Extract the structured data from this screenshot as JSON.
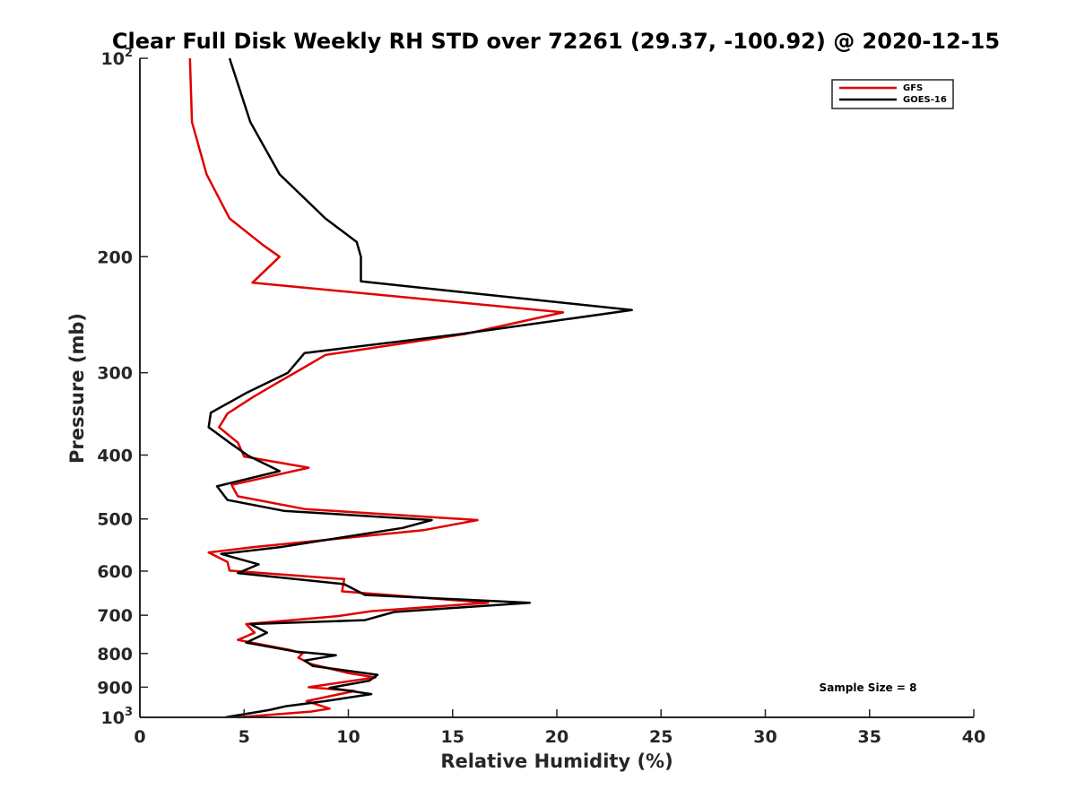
{
  "chart_data": {
    "type": "line",
    "title": "Clear Full Disk Weekly RH STD over 72261 (29.37, -100.92) @ 2020-12-15",
    "xlabel": "Relative Humidity (%)",
    "ylabel": "Pressure (mb)",
    "xlim": [
      0,
      40
    ],
    "ylim": [
      100,
      1000
    ],
    "yscale": "log",
    "y_reversed": true,
    "x_ticks": [
      "0",
      "5",
      "10",
      "15",
      "20",
      "25",
      "30",
      "35",
      "40"
    ],
    "y_ticks": [
      {
        "value": 100,
        "base": "10",
        "exp": "2"
      },
      {
        "value": 200,
        "label": "200"
      },
      {
        "value": 300,
        "label": "300"
      },
      {
        "value": 400,
        "label": "400"
      },
      {
        "value": 500,
        "label": "500"
      },
      {
        "value": 600,
        "label": "600"
      },
      {
        "value": 700,
        "label": "700"
      },
      {
        "value": 800,
        "label": "800"
      },
      {
        "value": 900,
        "label": "900"
      },
      {
        "value": 1000,
        "base": "10",
        "exp": "3"
      }
    ],
    "grid": false,
    "legend_position": "top-right",
    "annotation": "Sample Size = 8",
    "series": [
      {
        "name": "GFS",
        "color": "#e00000",
        "points": [
          [
            2.4,
            100
          ],
          [
            2.5,
            125
          ],
          [
            3.2,
            150
          ],
          [
            4.3,
            175
          ],
          [
            5.9,
            192
          ],
          [
            6.7,
            200
          ],
          [
            5.4,
            219
          ],
          [
            20.3,
            243
          ],
          [
            15.6,
            262
          ],
          [
            8.9,
            282
          ],
          [
            7.6,
            298
          ],
          [
            6.5,
            312
          ],
          [
            5.4,
            327
          ],
          [
            4.2,
            346
          ],
          [
            3.8,
            363
          ],
          [
            4.7,
            383
          ],
          [
            5.0,
            402
          ],
          [
            8.1,
            418
          ],
          [
            4.4,
            444
          ],
          [
            4.7,
            462
          ],
          [
            7.9,
            483
          ],
          [
            16.2,
            502
          ],
          [
            13.6,
            520
          ],
          [
            5.4,
            552
          ],
          [
            3.3,
            562
          ],
          [
            4.2,
            581
          ],
          [
            4.3,
            599
          ],
          [
            9.8,
            617
          ],
          [
            9.7,
            644
          ],
          [
            16.7,
            670
          ],
          [
            11.1,
            690
          ],
          [
            9.5,
            702
          ],
          [
            5.1,
            722
          ],
          [
            5.5,
            744
          ],
          [
            4.7,
            763
          ],
          [
            7.2,
            790
          ],
          [
            7.8,
            800
          ],
          [
            7.6,
            812
          ],
          [
            8.2,
            830
          ],
          [
            10.0,
            857
          ],
          [
            11.3,
            870
          ],
          [
            8.1,
            900
          ],
          [
            10.3,
            912
          ],
          [
            8.0,
            945
          ],
          [
            9.1,
            970
          ],
          [
            8.2,
            980
          ],
          [
            4.7,
            1000
          ]
        ]
      },
      {
        "name": "GOES-16",
        "color": "#000000",
        "points": [
          [
            4.3,
            100
          ],
          [
            5.3,
            125
          ],
          [
            6.7,
            150
          ],
          [
            8.9,
            175
          ],
          [
            10.4,
            190
          ],
          [
            10.6,
            200
          ],
          [
            10.6,
            218
          ],
          [
            23.6,
            241
          ],
          [
            15.4,
            262
          ],
          [
            7.9,
            280
          ],
          [
            7.1,
            300
          ],
          [
            5.1,
            322
          ],
          [
            3.4,
            345
          ],
          [
            3.3,
            363
          ],
          [
            4.3,
            383
          ],
          [
            5.2,
            401
          ],
          [
            6.7,
            423
          ],
          [
            3.7,
            446
          ],
          [
            4.2,
            468
          ],
          [
            6.9,
            486
          ],
          [
            14.0,
            502
          ],
          [
            12.6,
            516
          ],
          [
            6.7,
            552
          ],
          [
            3.9,
            565
          ],
          [
            5.7,
            586
          ],
          [
            4.7,
            604
          ],
          [
            9.8,
            628
          ],
          [
            10.8,
            652
          ],
          [
            18.7,
            670
          ],
          [
            12.2,
            692
          ],
          [
            10.8,
            712
          ],
          [
            5.3,
            722
          ],
          [
            6.1,
            744
          ],
          [
            5.1,
            770
          ],
          [
            7.5,
            795
          ],
          [
            9.4,
            805
          ],
          [
            7.9,
            820
          ],
          [
            8.3,
            836
          ],
          [
            11.4,
            862
          ],
          [
            11.0,
            880
          ],
          [
            9.1,
            902
          ],
          [
            11.1,
            922
          ],
          [
            8.9,
            945
          ],
          [
            7.0,
            962
          ],
          [
            6.2,
            975
          ],
          [
            4.1,
            1000
          ]
        ]
      }
    ]
  }
}
